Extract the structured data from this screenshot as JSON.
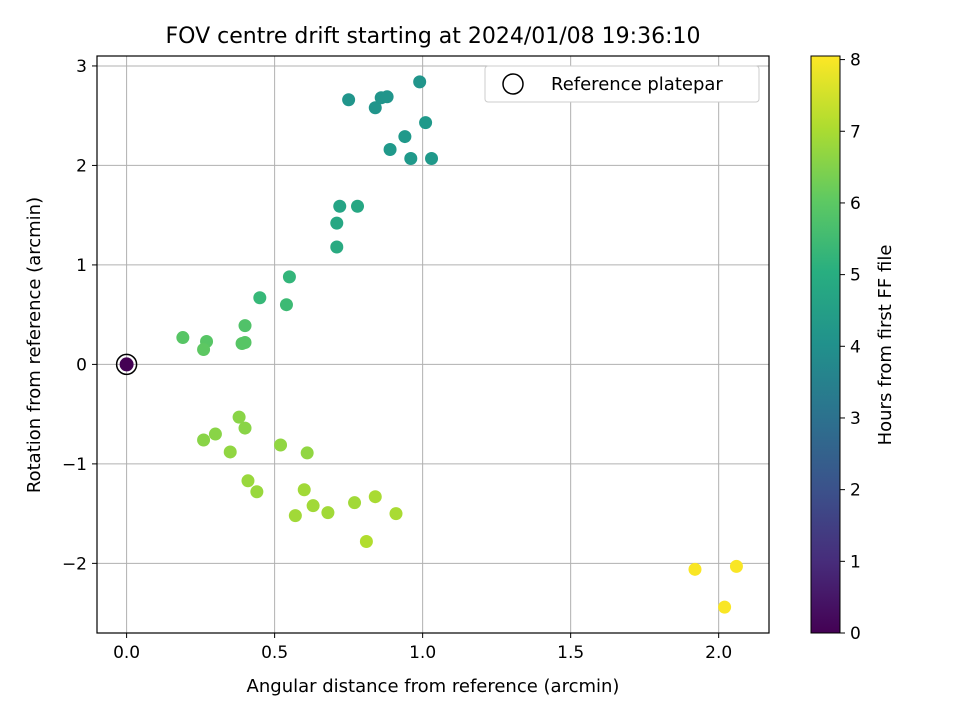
{
  "chart_data": {
    "type": "scatter",
    "title": "FOV centre drift starting at 2024/01/08 19:36:10",
    "xlabel": "Angular distance from reference (arcmin)",
    "ylabel": "Rotation from reference (arcmin)",
    "xlim": [
      -0.1,
      2.17
    ],
    "ylim": [
      -2.7,
      3.1
    ],
    "xticks": [
      0.0,
      0.5,
      1.0,
      1.5,
      2.0
    ],
    "xtick_labels": [
      "0.0",
      "0.5",
      "1.0",
      "1.5",
      "2.0"
    ],
    "yticks": [
      -2,
      -1,
      0,
      1,
      2,
      3
    ],
    "ytick_labels": [
      "−2",
      "−1",
      "0",
      "1",
      "2",
      "3"
    ],
    "grid": true,
    "legend": {
      "placement": "top-right",
      "entries": [
        "Reference platepar"
      ]
    },
    "colorbar": {
      "label": "Hours from first FF file",
      "colormap": "viridis",
      "range": [
        0,
        8.05
      ],
      "ticks": [
        0,
        1,
        2,
        3,
        4,
        5,
        6,
        7,
        8
      ],
      "tick_labels": [
        "0",
        "1",
        "2",
        "3",
        "4",
        "5",
        "6",
        "7",
        "8"
      ]
    },
    "reference_point": {
      "x": 0.0,
      "y": 0.0,
      "hours": 0
    },
    "points": [
      {
        "x": 0.75,
        "y": 2.66,
        "hours": 4.2
      },
      {
        "x": 0.84,
        "y": 2.58,
        "hours": 4.2
      },
      {
        "x": 0.86,
        "y": 2.68,
        "hours": 4.2
      },
      {
        "x": 0.88,
        "y": 2.69,
        "hours": 4.2
      },
      {
        "x": 0.99,
        "y": 2.84,
        "hours": 4.2
      },
      {
        "x": 1.01,
        "y": 2.43,
        "hours": 4.3
      },
      {
        "x": 0.94,
        "y": 2.29,
        "hours": 4.3
      },
      {
        "x": 0.89,
        "y": 2.16,
        "hours": 4.3
      },
      {
        "x": 0.96,
        "y": 2.07,
        "hours": 4.3
      },
      {
        "x": 1.03,
        "y": 2.07,
        "hours": 4.3
      },
      {
        "x": 0.72,
        "y": 1.59,
        "hours": 4.7
      },
      {
        "x": 0.78,
        "y": 1.59,
        "hours": 4.8
      },
      {
        "x": 0.71,
        "y": 1.42,
        "hours": 4.8
      },
      {
        "x": 0.71,
        "y": 1.18,
        "hours": 4.9
      },
      {
        "x": 0.55,
        "y": 0.88,
        "hours": 5.3
      },
      {
        "x": 0.45,
        "y": 0.67,
        "hours": 5.4
      },
      {
        "x": 0.54,
        "y": 0.6,
        "hours": 5.5
      },
      {
        "x": 0.4,
        "y": 0.39,
        "hours": 5.8
      },
      {
        "x": 0.19,
        "y": 0.27,
        "hours": 5.9
      },
      {
        "x": 0.27,
        "y": 0.23,
        "hours": 5.9
      },
      {
        "x": 0.39,
        "y": 0.21,
        "hours": 5.9
      },
      {
        "x": 0.4,
        "y": 0.22,
        "hours": 5.9
      },
      {
        "x": 0.26,
        "y": 0.15,
        "hours": 6.0
      },
      {
        "x": 0.38,
        "y": -0.53,
        "hours": 6.6
      },
      {
        "x": 0.4,
        "y": -0.64,
        "hours": 6.6
      },
      {
        "x": 0.3,
        "y": -0.7,
        "hours": 6.6
      },
      {
        "x": 0.26,
        "y": -0.76,
        "hours": 6.6
      },
      {
        "x": 0.35,
        "y": -0.88,
        "hours": 6.7
      },
      {
        "x": 0.52,
        "y": -0.81,
        "hours": 6.7
      },
      {
        "x": 0.61,
        "y": -0.89,
        "hours": 6.7
      },
      {
        "x": 0.41,
        "y": -1.17,
        "hours": 6.8
      },
      {
        "x": 0.44,
        "y": -1.28,
        "hours": 6.8
      },
      {
        "x": 0.6,
        "y": -1.26,
        "hours": 6.9
      },
      {
        "x": 0.63,
        "y": -1.42,
        "hours": 6.9
      },
      {
        "x": 0.68,
        "y": -1.49,
        "hours": 6.9
      },
      {
        "x": 0.57,
        "y": -1.52,
        "hours": 6.9
      },
      {
        "x": 0.77,
        "y": -1.39,
        "hours": 6.9
      },
      {
        "x": 0.84,
        "y": -1.33,
        "hours": 7.0
      },
      {
        "x": 0.91,
        "y": -1.5,
        "hours": 7.0
      },
      {
        "x": 0.81,
        "y": -1.78,
        "hours": 7.1
      },
      {
        "x": 1.92,
        "y": -2.06,
        "hours": 8.0
      },
      {
        "x": 2.06,
        "y": -2.03,
        "hours": 8.0
      },
      {
        "x": 2.02,
        "y": -2.44,
        "hours": 8.0
      }
    ]
  }
}
